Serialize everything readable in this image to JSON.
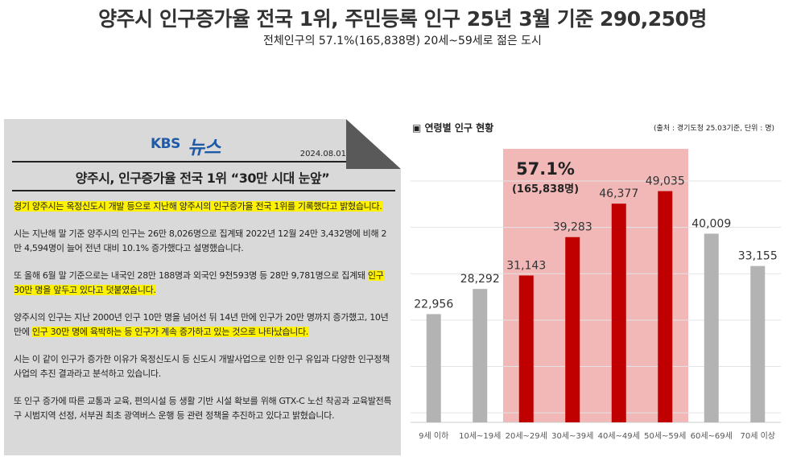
{
  "headline": "양주시 인구증가율 전국 1위, 주민등록 인구 25년 3월 기준 290,250명",
  "subheadline": "전체인구의 57.1%(165,838명) 20세~59세로 젊은 도시",
  "news": {
    "logo_left": "KBS",
    "logo_right": "뉴스",
    "date": "2024.08.01",
    "title": "양주시, 인구증가율 전국 1위 “30만 시대 눈앞”",
    "paragraphs": [
      {
        "hl": "경기 양주시는 옥정신도시 개발 등으로 지난해 양주시의 인구증가율 전국 1위를 기록했다고 밝혔습니다.",
        "rest": ""
      },
      {
        "pre": "시는 지난해 말 기준 양주시의 인구는 26만 8,026명으로 집계돼 2022년 12월 24만 3,432명에 비해 2만 4,594명이 늘어 전년 대비 10.1% 증가했다고 설명했습니다."
      },
      {
        "pre": "또 올해 6월 말 기준으로는 내국인 28만 188명과 외국인 9천593명 등 28만 9,781명으로 집계돼 ",
        "hl": "인구 30만 명을 앞두고 있다고 덧붙였습니다."
      },
      {
        "pre": "양주시의 인구는 지난 2000년 인구 10만 명을 넘어선 뒤 14년 만에 인구가 20만 명까지 증가했고, 10년 만에 ",
        "hl": "인구 30만 명에 육박하는 등 인구가 계속 증가하고 있는 것으로 나타났습니다."
      },
      {
        "pre": "시는 이 같이 인구가 증가한 이유가 옥정신도시 등 신도시 개발사업으로 인한 인구 유입과 다양한 인구정책 사업의 추진 결과라고 분석하고 있습니다."
      },
      {
        "pre": "또 인구 증가에 따른 교통과 교육, 편의시설 등 생활 기반 시설 확보를 위해 GTX-C 노선 착공과 교육발전특구 시범지역 선정, 서부권 최초 광역버스 운행 등 관련 정책을 추진하고 있다고 밝혔습니다."
      }
    ]
  },
  "chart_header": {
    "title": "▣ 연령별 인구 현황",
    "source": "(출처 : 경기도청 25.03기준, 단위 : 명)"
  },
  "chart_data": {
    "type": "bar",
    "categories": [
      "9세 이하",
      "10세~19세",
      "20세~29세",
      "30세~39세",
      "40세~49세",
      "50세~59세",
      "60세~69세",
      "70세 이상"
    ],
    "values": [
      22956,
      28292,
      31143,
      39283,
      46377,
      49035,
      40009,
      33155
    ],
    "value_labels": [
      "22,956",
      "28,292",
      "31,143",
      "39,283",
      "46,377",
      "49,035",
      "40,009",
      "33,155"
    ],
    "highlighted": [
      false,
      false,
      true,
      true,
      true,
      true,
      false,
      false
    ],
    "ylim": [
      0,
      58000
    ],
    "grid": true,
    "annotation": {
      "percent": "57.1%",
      "count": "(165,838명)"
    },
    "colors": {
      "normal": "#b3b3b3",
      "highlight": "#c00000",
      "band": "#f2b8b8",
      "grid": "#e3e3e3"
    }
  }
}
